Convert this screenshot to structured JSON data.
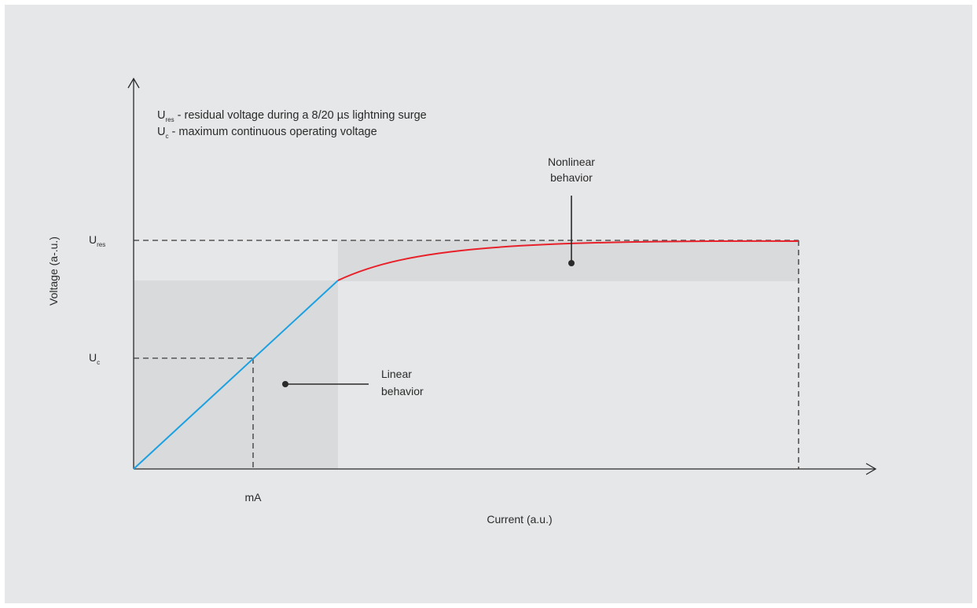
{
  "legend": {
    "ures_symbol": "U",
    "ures_sub": "res",
    "ures_text": " - residual voltage during a 8/20 µs lightning surge",
    "uc_symbol": "U",
    "uc_sub": "c",
    "uc_text": " - maximum continuous operating voltage"
  },
  "axes": {
    "y_label": "Voltage (a-.u.)",
    "x_label": "Current (a.u.)",
    "y_tick_ures_symbol": "U",
    "y_tick_ures_sub": "res",
    "y_tick_uc_symbol": "U",
    "y_tick_uc_sub": "c",
    "x_tick_ma": "mA"
  },
  "annotations": {
    "nonlinear_line1": "Nonlinear",
    "nonlinear_line2": "behavior",
    "linear_line1": "Linear",
    "linear_line2": "behavior"
  },
  "colors": {
    "panel": "#e6e7e8",
    "region": "#d9dadb",
    "linear_curve": "#1ba1e2",
    "nonlinear_curve": "#e8202a",
    "axis": "#2a2a2a",
    "dashed": "#555555"
  }
}
